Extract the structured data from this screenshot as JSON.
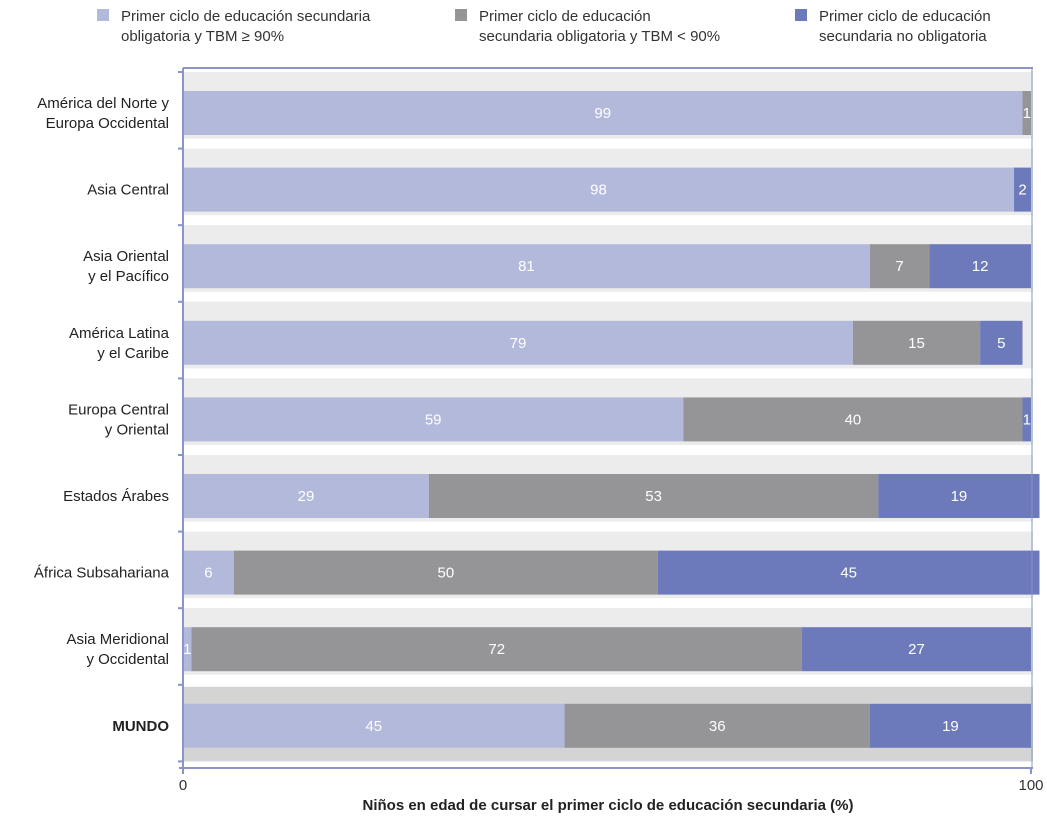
{
  "chart_data": {
    "type": "bar",
    "orientation": "horizontal",
    "stacked": true,
    "xlabel": "Niños en edad de cursar el primer ciclo de educación secundaria (%)",
    "xlim": [
      0,
      100
    ],
    "xticks": [
      "0",
      "100"
    ],
    "legend_position": "top",
    "series": [
      {
        "name_lines": [
          "Primer ciclo de educación secundaria",
          "obligatoria y TBM ≥ 90%"
        ],
        "color": "#b3b9db"
      },
      {
        "name_lines": [
          "Primer ciclo de educación",
          "secundaria obligatoria y TBM < 90%"
        ],
        "color": "#959597"
      },
      {
        "name_lines": [
          "Primer ciclo de educación",
          "secundaria no obligatoria"
        ],
        "color": "#6c79ba"
      }
    ],
    "categories": [
      {
        "lines": [
          "América del Norte y",
          "Europa Occidental"
        ],
        "values": [
          99,
          1,
          0
        ],
        "labels": [
          "99",
          "1",
          ""
        ]
      },
      {
        "lines": [
          "Asia Central"
        ],
        "values": [
          98,
          0,
          2
        ],
        "labels": [
          "98",
          "",
          "2"
        ]
      },
      {
        "lines": [
          "Asia Oriental",
          "y el Pacífico"
        ],
        "values": [
          81,
          7,
          12
        ],
        "labels": [
          "81",
          "7",
          "12"
        ]
      },
      {
        "lines": [
          "América Latina",
          "y el Caribe"
        ],
        "values": [
          79,
          15,
          5
        ],
        "labels": [
          "79",
          "15",
          "5"
        ]
      },
      {
        "lines": [
          "Europa Central",
          "y Oriental"
        ],
        "values": [
          59,
          40,
          1
        ],
        "labels": [
          "59",
          "40",
          "1"
        ]
      },
      {
        "lines": [
          "Estados Árabes"
        ],
        "values": [
          29,
          53,
          19
        ],
        "labels": [
          "29",
          "53",
          "19"
        ]
      },
      {
        "lines": [
          "África Subsahariana"
        ],
        "values": [
          6,
          50,
          45
        ],
        "labels": [
          "6",
          "50",
          "45"
        ]
      },
      {
        "lines": [
          "Asia Meridional",
          "y Occidental"
        ],
        "values": [
          1,
          72,
          27
        ],
        "labels": [
          "1",
          "72",
          "27"
        ]
      },
      {
        "lines": [
          "MUNDO"
        ],
        "values": [
          45,
          36,
          19
        ],
        "labels": [
          "45",
          "36",
          "19"
        ],
        "highlight": true
      }
    ],
    "colors": {
      "band_light": "#ececec",
      "band_world": "#d4d4d4",
      "axis": "#8a94c8"
    }
  }
}
